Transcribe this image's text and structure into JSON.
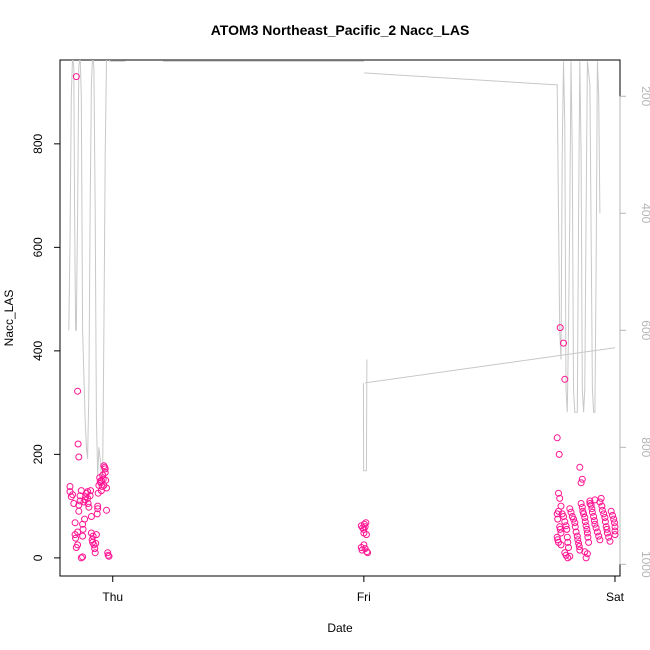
{
  "chart_data": {
    "type": "scatter",
    "title": "ATOM3 Northeast_Pacific_2 Nacc_LAS",
    "xlabel": "Date",
    "ylabel": "Nacc_LAS",
    "x_ticks": [
      "Thu",
      "Fri",
      "Sat"
    ],
    "y_ticks": [
      "0",
      "200",
      "400",
      "600",
      "800"
    ],
    "y2_ticks": [
      "200",
      "400",
      "600",
      "800",
      "1000"
    ],
    "ylim": [
      -35,
      962
    ],
    "y2lim": [
      1020,
      138
    ],
    "y2_reversed": true,
    "xlim_days": [
      -0.21,
      2.02
    ],
    "point_color": "#ff1493",
    "altitude_color": "#c8c8c8",
    "series": [
      {
        "type": "scatter",
        "points": [
          [
            -0.17,
            138
          ],
          [
            -0.17,
            128
          ],
          [
            -0.165,
            118
          ],
          [
            -0.16,
            122
          ],
          [
            -0.155,
            105
          ],
          [
            -0.15,
            68
          ],
          [
            -0.15,
            45
          ],
          [
            -0.148,
            38
          ],
          [
            -0.145,
            20
          ],
          [
            -0.14,
            25
          ],
          [
            -0.14,
            50
          ],
          [
            -0.135,
            102
          ],
          [
            -0.135,
            90
          ],
          [
            -0.13,
            110
          ],
          [
            -0.13,
            120
          ],
          [
            -0.125,
            130
          ],
          [
            -0.12,
            65
          ],
          [
            -0.12,
            42
          ],
          [
            -0.118,
            55
          ],
          [
            -0.115,
            108
          ],
          [
            -0.112,
            75
          ],
          [
            -0.145,
            930
          ],
          [
            -0.14,
            322
          ],
          [
            -0.138,
            220
          ],
          [
            -0.135,
            195
          ],
          [
            -0.125,
            0
          ],
          [
            -0.12,
            2
          ],
          [
            -0.11,
            112
          ],
          [
            -0.108,
            118
          ],
          [
            -0.105,
            125
          ],
          [
            -0.1,
            128
          ],
          [
            -0.1,
            115
          ],
          [
            -0.098,
            105
          ],
          [
            -0.095,
            98
          ],
          [
            -0.09,
            120
          ],
          [
            -0.088,
            130
          ],
          [
            -0.085,
            80
          ],
          [
            -0.085,
            48
          ],
          [
            -0.082,
            35
          ],
          [
            -0.08,
            30
          ],
          [
            -0.078,
            42
          ],
          [
            -0.075,
            25
          ],
          [
            -0.072,
            18
          ],
          [
            -0.07,
            10
          ],
          [
            -0.068,
            28
          ],
          [
            -0.065,
            45
          ],
          [
            -0.062,
            85
          ],
          [
            -0.06,
            95
          ],
          [
            -0.06,
            100
          ],
          [
            -0.058,
            125
          ],
          [
            -0.055,
            140
          ],
          [
            -0.052,
            155
          ],
          [
            -0.05,
            148
          ],
          [
            -0.048,
            145
          ],
          [
            -0.045,
            150
          ],
          [
            -0.045,
            130
          ],
          [
            -0.042,
            138
          ],
          [
            -0.04,
            160
          ],
          [
            -0.038,
            152
          ],
          [
            -0.035,
            140
          ],
          [
            -0.035,
            178
          ],
          [
            -0.032,
            175
          ],
          [
            -0.03,
            165
          ],
          [
            -0.03,
            172
          ],
          [
            -0.028,
            150
          ],
          [
            -0.025,
            135
          ],
          [
            -0.025,
            92
          ],
          [
            -0.02,
            10
          ],
          [
            -0.018,
            5
          ],
          [
            -0.015,
            3
          ],
          [
            0.99,
            62
          ],
          [
            0.995,
            58
          ],
          [
            1.0,
            55
          ],
          [
            1.002,
            65
          ],
          [
            1.005,
            60
          ],
          [
            1.0,
            48
          ],
          [
            1.008,
            68
          ],
          [
            1.01,
            45
          ],
          [
            0.99,
            20
          ],
          [
            0.993,
            15
          ],
          [
            1.0,
            25
          ],
          [
            1.005,
            18
          ],
          [
            1.012,
            12
          ],
          [
            1.015,
            10
          ],
          [
            1.775,
            125
          ],
          [
            1.78,
            115
          ],
          [
            1.785,
            100
          ],
          [
            1.77,
            85
          ],
          [
            1.775,
            90
          ],
          [
            1.772,
            75
          ],
          [
            1.78,
            60
          ],
          [
            1.782,
            55
          ],
          [
            1.785,
            48
          ],
          [
            1.77,
            40
          ],
          [
            1.772,
            35
          ],
          [
            1.775,
            30
          ],
          [
            1.785,
            25
          ],
          [
            1.77,
            232
          ],
          [
            1.778,
            200
          ],
          [
            1.782,
            445
          ],
          [
            1.795,
            415
          ],
          [
            1.8,
            345
          ],
          [
            1.79,
            85
          ],
          [
            1.795,
            80
          ],
          [
            1.8,
            70
          ],
          [
            1.805,
            62
          ],
          [
            1.808,
            55
          ],
          [
            1.81,
            40
          ],
          [
            1.812,
            30
          ],
          [
            1.815,
            20
          ],
          [
            1.8,
            10
          ],
          [
            1.805,
            5
          ],
          [
            1.812,
            0
          ],
          [
            1.82,
            3
          ],
          [
            1.82,
            95
          ],
          [
            1.825,
            88
          ],
          [
            1.83,
            80
          ],
          [
            1.835,
            75
          ],
          [
            1.84,
            68
          ],
          [
            1.842,
            60
          ],
          [
            1.845,
            50
          ],
          [
            1.85,
            42
          ],
          [
            1.852,
            35
          ],
          [
            1.855,
            28
          ],
          [
            1.858,
            22
          ],
          [
            1.86,
            15
          ],
          [
            1.865,
            105
          ],
          [
            1.87,
            98
          ],
          [
            1.872,
            90
          ],
          [
            1.875,
            85
          ],
          [
            1.88,
            78
          ],
          [
            1.882,
            70
          ],
          [
            1.885,
            62
          ],
          [
            1.888,
            55
          ],
          [
            1.89,
            48
          ],
          [
            1.892,
            40
          ],
          [
            1.895,
            30
          ],
          [
            1.86,
            175
          ],
          [
            1.865,
            145
          ],
          [
            1.87,
            152
          ],
          [
            1.88,
            12
          ],
          [
            1.885,
            0
          ],
          [
            1.89,
            8
          ],
          [
            1.9,
            110
          ],
          [
            1.905,
            102
          ],
          [
            1.908,
            95
          ],
          [
            1.91,
            88
          ],
          [
            1.915,
            80
          ],
          [
            1.918,
            72
          ],
          [
            1.92,
            65
          ],
          [
            1.925,
            58
          ],
          [
            1.93,
            50
          ],
          [
            1.935,
            42
          ],
          [
            1.94,
            35
          ],
          [
            1.945,
            115
          ],
          [
            1.948,
            100
          ],
          [
            1.95,
            92
          ],
          [
            1.955,
            85
          ],
          [
            1.96,
            78
          ],
          [
            1.962,
            70
          ],
          [
            1.965,
            60
          ],
          [
            1.968,
            55
          ],
          [
            1.97,
            48
          ],
          [
            1.975,
            40
          ],
          [
            1.98,
            32
          ],
          [
            1.985,
            90
          ],
          [
            1.99,
            82
          ],
          [
            1.995,
            75
          ],
          [
            1.998,
            68
          ],
          [
            2.0,
            60
          ],
          [
            2.0,
            52
          ],
          [
            2.0,
            45
          ],
          [
            1.9,
            105
          ],
          [
            1.92,
            112
          ],
          [
            1.94,
            108
          ]
        ]
      },
      {
        "type": "line",
        "axis": "right",
        "segments": [
          [
            [
              -0.175,
              600
            ],
            [
              -0.17,
              450
            ],
            [
              -0.165,
              200
            ],
            [
              -0.16,
              130
            ],
            [
              -0.155,
              150
            ],
            [
              -0.152,
              400
            ],
            [
              -0.148,
              600
            ],
            [
              -0.145,
              600
            ],
            [
              -0.14,
              400
            ],
            [
              -0.135,
              150
            ],
            [
              -0.13,
              130
            ],
            [
              -0.125,
              200
            ],
            [
              -0.12,
              600
            ],
            [
              -0.11,
              750
            ],
            [
              -0.105,
              800
            ],
            [
              -0.1,
              820
            ],
            [
              -0.095,
              700
            ],
            [
              -0.09,
              400
            ],
            [
              -0.085,
              180
            ],
            [
              -0.08,
              130
            ],
            [
              -0.075,
              150
            ],
            [
              -0.07,
              400
            ],
            [
              -0.065,
              750
            ],
            [
              -0.06,
              850
            ],
            [
              -0.055,
              800
            ],
            [
              -0.05,
              820
            ],
            [
              -0.045,
              850
            ],
            [
              -0.04,
              840
            ],
            [
              -0.035,
              600
            ],
            [
              -0.03,
              300
            ],
            [
              -0.025,
              140
            ],
            [
              -0.02,
              130
            ],
            [
              -0.015,
              135
            ],
            [
              -0.01,
              140
            ],
            [
              0.0,
              140
            ],
            [
              0.05,
              140
            ]
          ],
          [
            [
              0.2,
              140
            ],
            [
              0.4,
              140
            ],
            [
              0.6,
              140
            ],
            [
              0.75,
              140
            ],
            [
              0.8,
              140
            ],
            [
              1.0,
              140
            ]
          ],
          [
            [
              1.0,
              160
            ],
            [
              1.75,
              180
            ],
            [
              1.77,
              180
            ],
            [
              1.775,
              400
            ],
            [
              1.78,
              600
            ],
            [
              1.785,
              650
            ],
            [
              1.79,
              300
            ],
            [
              1.795,
              140
            ],
            [
              1.8,
              250
            ],
            [
              1.805,
              700
            ],
            [
              1.81,
              740
            ],
            [
              1.815,
              600
            ],
            [
              1.82,
              400
            ],
            [
              1.825,
              140
            ],
            [
              1.83,
              300
            ],
            [
              1.835,
              700
            ],
            [
              1.84,
              740
            ],
            [
              1.85,
              740
            ],
            [
              1.855,
              400
            ],
            [
              1.86,
              140
            ],
            [
              1.865,
              300
            ],
            [
              1.87,
              700
            ],
            [
              1.875,
              740
            ],
            [
              1.88,
              700
            ],
            [
              1.885,
              400
            ],
            [
              1.89,
              140
            ],
            [
              1.9,
              180
            ],
            [
              1.91,
              700
            ],
            [
              1.915,
              740
            ],
            [
              1.92,
              740
            ],
            [
              1.925,
              500
            ],
            [
              1.93,
              140
            ],
            [
              1.935,
              200
            ],
            [
              1.94,
              400
            ]
          ]
        ],
        "secondary": [
          [
            [
              0.998,
              690
            ],
            [
              0.999,
              840
            ],
            [
              1.0,
              840
            ],
            [
              1.005,
              840
            ],
            [
              1.01,
              840
            ],
            [
              1.012,
              650
            ]
          ],
          [
            [
              1.005,
              690
            ],
            [
              1.5,
              660
            ],
            [
              2.0,
              630
            ]
          ]
        ]
      }
    ]
  }
}
